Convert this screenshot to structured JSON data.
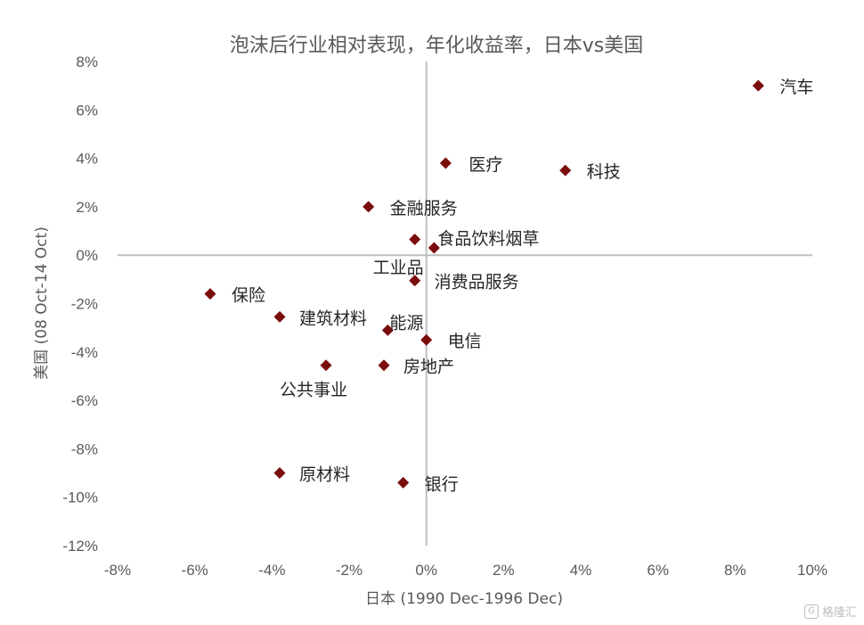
{
  "chart_data": {
    "type": "scatter",
    "title": "泡沫后行业相对表现，年化收益率，日本vs美国",
    "xlabel": "日本 (1990 Dec-1996 Dec)",
    "ylabel": "美国 (08 Oct-14 Oct)",
    "xlim": [
      -8,
      10
    ],
    "ylim": [
      -12,
      8
    ],
    "x_ticks": [
      "-8%",
      "-6%",
      "-4%",
      "-2%",
      "0%",
      "2%",
      "4%",
      "6%",
      "8%",
      "10%"
    ],
    "y_ticks": [
      "8%",
      "6%",
      "4%",
      "2%",
      "0%",
      "-2%",
      "-4%",
      "-6%",
      "-8%",
      "-10%",
      "-12%"
    ],
    "marker_color": "#7b0c0c",
    "axis_line_color": "#bfbfbf",
    "grid": false,
    "legend": "none",
    "points": [
      {
        "label": "汽车",
        "x": 8.6,
        "y": 7.0
      },
      {
        "label": "医疗",
        "x": 0.5,
        "y": 3.8
      },
      {
        "label": "科技",
        "x": 3.6,
        "y": 3.5
      },
      {
        "label": "金融服务",
        "x": -1.5,
        "y": 2.0
      },
      {
        "label": "食品饮料烟草",
        "x": 0.2,
        "y": 0.3
      },
      {
        "label": "工业品",
        "x": -0.3,
        "y": 0.65
      },
      {
        "label": "消费品服务",
        "x": -0.3,
        "y": -1.05
      },
      {
        "label": "保险",
        "x": -5.6,
        "y": -1.6
      },
      {
        "label": "建筑材料",
        "x": -3.8,
        "y": -2.55
      },
      {
        "label": "能源",
        "x": -1.0,
        "y": -3.1
      },
      {
        "label": "电信",
        "x": 0.0,
        "y": -3.5
      },
      {
        "label": "房地产",
        "x": -1.1,
        "y": -4.55
      },
      {
        "label": "公共事业",
        "x": -2.6,
        "y": -4.55
      },
      {
        "label": "原材料",
        "x": -3.8,
        "y": -9.0
      },
      {
        "label": "银行",
        "x": -0.6,
        "y": -9.4
      }
    ]
  },
  "watermark": {
    "icon": "G",
    "text": "格隆汇"
  }
}
